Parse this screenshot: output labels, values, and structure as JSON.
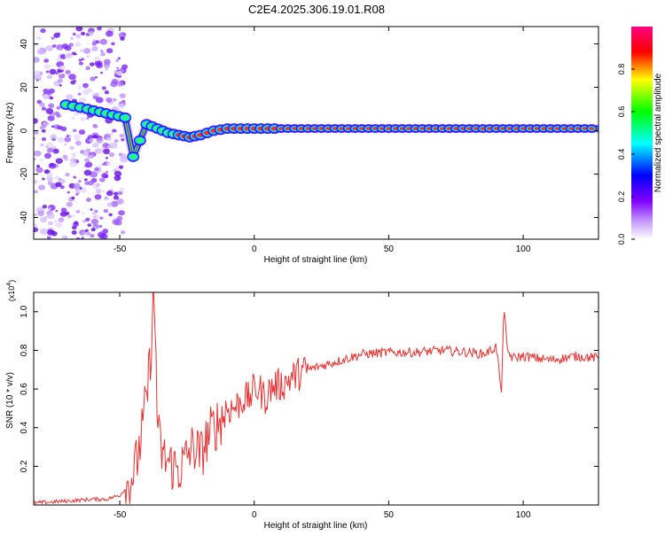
{
  "title": "C2E4.2025.306.19.01.R08",
  "colors": {
    "line": "#e63232",
    "axis": "#000000",
    "background": "#ffffff"
  },
  "chart_data": [
    {
      "type": "heatmap",
      "xlabel": "Height of straight line (km)",
      "ylabel": "Frequency (Hz)",
      "xlim": [
        -82,
        128
      ],
      "ylim": [
        -50,
        48
      ],
      "x_ticks": [
        -50,
        0,
        50,
        100
      ],
      "y_ticks": [
        -40,
        -20,
        0,
        20,
        40
      ],
      "colorbar": {
        "label": "Normalized spectral amplitude",
        "range": [
          0.0,
          1.0
        ],
        "ticks": [
          "0.0",
          "0.2",
          "0.4",
          "0.6",
          "0.8"
        ],
        "colormap": [
          "#ffffff",
          "#8000ff",
          "#0000ff",
          "#00ffff",
          "#00ff00",
          "#ffff00",
          "#ff0000",
          "#ff00ff"
        ]
      },
      "ridge": {
        "x": [
          -70,
          -62,
          -55,
          -48,
          -45,
          -40,
          -36,
          -32,
          -28,
          -24,
          -20,
          -15,
          -10,
          -5,
          0,
          10,
          20,
          40,
          60,
          80,
          90,
          100,
          128
        ],
        "frequency": [
          12,
          10,
          8,
          6,
          -12,
          3,
          1,
          -1,
          -2,
          -3,
          -2,
          0,
          1,
          1,
          1,
          1,
          1,
          1,
          1,
          1,
          1,
          1,
          1
        ]
      }
    },
    {
      "type": "line",
      "xlabel": "Height of straight line (km)",
      "ylabel": "SNR (10 * v/v)",
      "y_scale_label": "(x10",
      "y_scale_exponent": "4",
      "xlim": [
        -82,
        128
      ],
      "ylim": [
        0,
        1.1
      ],
      "x_ticks": [
        -50,
        0,
        50,
        100
      ],
      "y_ticks": [
        "0.2",
        "0.4",
        "0.6",
        "0.8",
        "1.0"
      ],
      "series": [
        {
          "x": [
            -82,
            -70,
            -60,
            -55,
            -50,
            -47,
            -44,
            -42,
            -40,
            -39,
            -38,
            -37.5,
            -37,
            -36.5,
            -36,
            -35,
            -34,
            -32,
            -30,
            -28,
            -26,
            -24,
            -22,
            -20,
            -18,
            -16,
            -14,
            -12,
            -10,
            -8,
            -6,
            -4,
            -2,
            0,
            2,
            4,
            6,
            8,
            10,
            12,
            15,
            20,
            25,
            30,
            35,
            40,
            50,
            60,
            70,
            80,
            85,
            88,
            90,
            91,
            92,
            92.5,
            93,
            94,
            96,
            100,
            110,
            120,
            128
          ],
          "values": [
            0.01,
            0.02,
            0.03,
            0.03,
            0.05,
            0.1,
            0.2,
            0.35,
            0.55,
            0.7,
            0.9,
            1.08,
            0.95,
            0.78,
            0.4,
            0.3,
            0.25,
            0.22,
            0.2,
            0.18,
            0.22,
            0.28,
            0.3,
            0.25,
            0.33,
            0.38,
            0.42,
            0.45,
            0.5,
            0.5,
            0.52,
            0.55,
            0.55,
            0.6,
            0.6,
            0.55,
            0.6,
            0.62,
            0.62,
            0.64,
            0.67,
            0.7,
            0.72,
            0.74,
            0.76,
            0.78,
            0.79,
            0.79,
            0.8,
            0.79,
            0.78,
            0.8,
            0.82,
            0.7,
            0.55,
            0.95,
            1.0,
            0.8,
            0.76,
            0.77,
            0.75,
            0.77,
            0.76
          ]
        }
      ]
    }
  ]
}
